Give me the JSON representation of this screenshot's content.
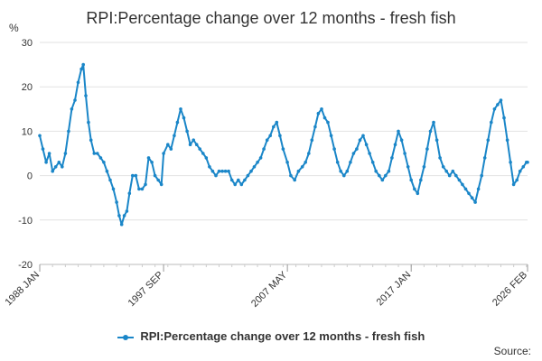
{
  "chart_data": {
    "type": "line",
    "title": "RPI:Percentage change over 12 months - fresh fish",
    "ylabel": "%",
    "xlabel": "",
    "ylim": [
      -20,
      30
    ],
    "yticks": [
      30,
      20,
      10,
      0,
      -10,
      -20
    ],
    "xlim": [
      1988.0,
      2026.083
    ],
    "xtick_labels": [
      {
        "label": "1988 JAN",
        "x": 1988.0
      },
      {
        "label": "1997 SEP",
        "x": 1997.667
      },
      {
        "label": "2007 MAY",
        "x": 2007.333
      },
      {
        "label": "2017 JAN",
        "x": 2017.0
      },
      {
        "label": "2026 FEB",
        "x": 2026.083
      }
    ],
    "grid": true,
    "series": [
      {
        "name": "RPI:Percentage change over 12 months - fresh fish",
        "color": "#1a86c8",
        "points": [
          [
            1988.0,
            9
          ],
          [
            1988.25,
            6
          ],
          [
            1988.5,
            3
          ],
          [
            1988.75,
            5
          ],
          [
            1989.0,
            1
          ],
          [
            1989.25,
            2
          ],
          [
            1989.5,
            3
          ],
          [
            1989.75,
            2
          ],
          [
            1990.0,
            5
          ],
          [
            1990.25,
            10
          ],
          [
            1990.5,
            15
          ],
          [
            1990.75,
            17
          ],
          [
            1991.0,
            21
          ],
          [
            1991.25,
            24
          ],
          [
            1991.4,
            25
          ],
          [
            1991.6,
            18
          ],
          [
            1991.8,
            12
          ],
          [
            1992.0,
            8
          ],
          [
            1992.25,
            5
          ],
          [
            1992.5,
            5
          ],
          [
            1992.75,
            4
          ],
          [
            1993.0,
            3
          ],
          [
            1993.25,
            1
          ],
          [
            1993.5,
            -1
          ],
          [
            1993.75,
            -3
          ],
          [
            1994.0,
            -6
          ],
          [
            1994.2,
            -9
          ],
          [
            1994.4,
            -11
          ],
          [
            1994.6,
            -9
          ],
          [
            1994.8,
            -8
          ],
          [
            1995.0,
            -4
          ],
          [
            1995.25,
            0
          ],
          [
            1995.5,
            0
          ],
          [
            1995.75,
            -3
          ],
          [
            1996.0,
            -3
          ],
          [
            1996.25,
            -2
          ],
          [
            1996.5,
            4
          ],
          [
            1996.75,
            3
          ],
          [
            1997.0,
            0
          ],
          [
            1997.25,
            -1
          ],
          [
            1997.5,
            -2
          ],
          [
            1997.667,
            5
          ],
          [
            1998.0,
            7
          ],
          [
            1998.25,
            6
          ],
          [
            1998.5,
            9
          ],
          [
            1998.75,
            12
          ],
          [
            1999.0,
            15
          ],
          [
            1999.25,
            13
          ],
          [
            1999.5,
            10
          ],
          [
            1999.75,
            7
          ],
          [
            2000.0,
            8
          ],
          [
            2000.25,
            7
          ],
          [
            2000.5,
            6
          ],
          [
            2000.75,
            5
          ],
          [
            2001.0,
            4
          ],
          [
            2001.25,
            2
          ],
          [
            2001.5,
            1
          ],
          [
            2001.75,
            0
          ],
          [
            2002.0,
            1
          ],
          [
            2002.25,
            1
          ],
          [
            2002.5,
            1
          ],
          [
            2002.75,
            1
          ],
          [
            2003.0,
            -1
          ],
          [
            2003.25,
            -2
          ],
          [
            2003.5,
            -1
          ],
          [
            2003.75,
            -2
          ],
          [
            2004.0,
            -1
          ],
          [
            2004.25,
            0
          ],
          [
            2004.5,
            1
          ],
          [
            2004.75,
            2
          ],
          [
            2005.0,
            3
          ],
          [
            2005.25,
            4
          ],
          [
            2005.5,
            6
          ],
          [
            2005.75,
            8
          ],
          [
            2006.0,
            9
          ],
          [
            2006.25,
            11
          ],
          [
            2006.5,
            12
          ],
          [
            2006.75,
            9
          ],
          [
            2007.0,
            6
          ],
          [
            2007.333,
            3
          ],
          [
            2007.6,
            0
          ],
          [
            2007.9,
            -1
          ],
          [
            2008.2,
            1
          ],
          [
            2008.5,
            2
          ],
          [
            2008.75,
            3
          ],
          [
            2009.0,
            5
          ],
          [
            2009.25,
            8
          ],
          [
            2009.5,
            11
          ],
          [
            2009.75,
            14
          ],
          [
            2010.0,
            15
          ],
          [
            2010.25,
            13
          ],
          [
            2010.5,
            12
          ],
          [
            2010.75,
            9
          ],
          [
            2011.0,
            6
          ],
          [
            2011.25,
            3
          ],
          [
            2011.5,
            1
          ],
          [
            2011.75,
            0
          ],
          [
            2012.0,
            1
          ],
          [
            2012.25,
            3
          ],
          [
            2012.5,
            5
          ],
          [
            2012.75,
            6
          ],
          [
            2013.0,
            8
          ],
          [
            2013.25,
            9
          ],
          [
            2013.5,
            7
          ],
          [
            2013.75,
            5
          ],
          [
            2014.0,
            3
          ],
          [
            2014.25,
            1
          ],
          [
            2014.5,
            0
          ],
          [
            2014.75,
            -1
          ],
          [
            2015.0,
            0
          ],
          [
            2015.25,
            1
          ],
          [
            2015.5,
            4
          ],
          [
            2015.75,
            7
          ],
          [
            2016.0,
            10
          ],
          [
            2016.25,
            8
          ],
          [
            2016.5,
            5
          ],
          [
            2016.75,
            2
          ],
          [
            2017.0,
            -1
          ],
          [
            2017.25,
            -3
          ],
          [
            2017.5,
            -4
          ],
          [
            2017.75,
            -1
          ],
          [
            2018.0,
            2
          ],
          [
            2018.25,
            6
          ],
          [
            2018.5,
            10
          ],
          [
            2018.75,
            12
          ],
          [
            2019.0,
            8
          ],
          [
            2019.25,
            4
          ],
          [
            2019.5,
            2
          ],
          [
            2019.75,
            1
          ],
          [
            2020.0,
            0
          ],
          [
            2020.25,
            1
          ],
          [
            2020.5,
            0
          ],
          [
            2020.75,
            -1
          ],
          [
            2021.0,
            -2
          ],
          [
            2021.25,
            -3
          ],
          [
            2021.5,
            -4
          ],
          [
            2021.75,
            -5
          ],
          [
            2022.0,
            -6
          ],
          [
            2022.25,
            -3
          ],
          [
            2022.5,
            0
          ],
          [
            2022.75,
            4
          ],
          [
            2023.0,
            8
          ],
          [
            2023.25,
            12
          ],
          [
            2023.5,
            15
          ],
          [
            2023.75,
            16
          ],
          [
            2024.0,
            17
          ],
          [
            2024.25,
            13
          ],
          [
            2024.5,
            8
          ],
          [
            2024.75,
            3
          ],
          [
            2025.0,
            -2
          ],
          [
            2025.25,
            -1
          ],
          [
            2025.5,
            1
          ],
          [
            2025.75,
            2
          ],
          [
            2026.0,
            3
          ],
          [
            2026.083,
            3
          ]
        ]
      }
    ]
  },
  "ui": {
    "title": "RPI:Percentage change over 12 months - fresh fish",
    "y_unit": "%",
    "legend_label": "RPI:Percentage change over 12 months - fresh fish",
    "source_label": "Source:"
  }
}
